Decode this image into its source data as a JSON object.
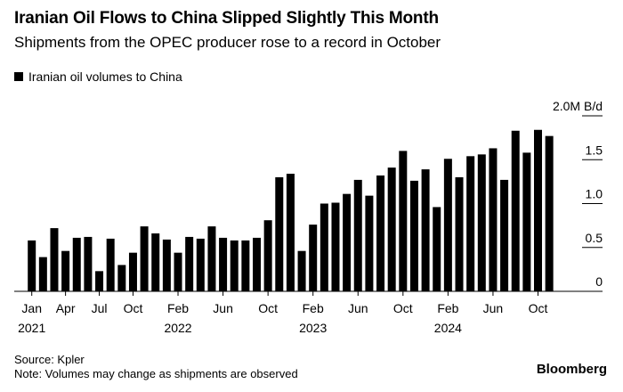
{
  "title": "Iranian Oil Flows to China Slipped Slightly This Month",
  "subtitle": "Shipments from the OPEC producer rose to a record in October",
  "source": "Source: Kpler",
  "note": "Note: Volumes may change as shipments are observed",
  "brand": "Bloomberg",
  "chart_data": {
    "type": "bar",
    "legend": [
      "Iranian oil volumes to China"
    ],
    "legend_placement": "top-left",
    "ylabel": "M B/d",
    "ylim": [
      0,
      2.0
    ],
    "yticks": [
      "0",
      "0.5",
      "1.0",
      "1.5",
      "2.0M B/d"
    ],
    "ytick_values": [
      0,
      0.5,
      1.0,
      1.5,
      2.0
    ],
    "color": "#000000",
    "xtick_labels": [
      {
        "index": 0,
        "label": "Jan",
        "year": "2021"
      },
      {
        "index": 3,
        "label": "Apr"
      },
      {
        "index": 6,
        "label": "Jul"
      },
      {
        "index": 9,
        "label": "Oct"
      },
      {
        "index": 13,
        "label": "Feb",
        "year": "2022"
      },
      {
        "index": 17,
        "label": "Jun"
      },
      {
        "index": 21,
        "label": "Oct"
      },
      {
        "index": 25,
        "label": "Feb",
        "year": "2023"
      },
      {
        "index": 29,
        "label": "Jun"
      },
      {
        "index": 33,
        "label": "Oct"
      },
      {
        "index": 37,
        "label": "Feb",
        "year": "2024"
      },
      {
        "index": 41,
        "label": "Jun"
      },
      {
        "index": 45,
        "label": "Oct"
      }
    ],
    "categories": [
      "2021-01",
      "2021-02",
      "2021-03",
      "2021-04",
      "2021-05",
      "2021-06",
      "2021-07",
      "2021-08",
      "2021-09",
      "2021-10",
      "2021-11",
      "2021-12",
      "2022-01",
      "2022-02",
      "2022-03",
      "2022-04",
      "2022-05",
      "2022-06",
      "2022-07",
      "2022-08",
      "2022-09",
      "2022-10",
      "2022-11",
      "2022-12",
      "2023-01",
      "2023-02",
      "2023-03",
      "2023-04",
      "2023-05",
      "2023-06",
      "2023-07",
      "2023-08",
      "2023-09",
      "2023-10",
      "2023-11",
      "2023-12",
      "2024-01",
      "2024-02",
      "2024-03",
      "2024-04",
      "2024-05",
      "2024-06",
      "2024-07",
      "2024-08",
      "2024-09",
      "2024-10",
      "2024-11"
    ],
    "values": [
      0.58,
      0.39,
      0.72,
      0.46,
      0.61,
      0.62,
      0.23,
      0.6,
      0.3,
      0.44,
      0.74,
      0.66,
      0.59,
      0.44,
      0.62,
      0.6,
      0.74,
      0.61,
      0.58,
      0.58,
      0.61,
      0.81,
      1.3,
      1.34,
      0.46,
      0.76,
      1.0,
      1.01,
      1.11,
      1.27,
      1.09,
      1.32,
      1.41,
      1.6,
      1.26,
      1.39,
      0.96,
      1.51,
      1.3,
      1.54,
      1.56,
      1.63,
      1.27,
      1.83,
      1.58,
      1.84,
      1.77
    ]
  }
}
